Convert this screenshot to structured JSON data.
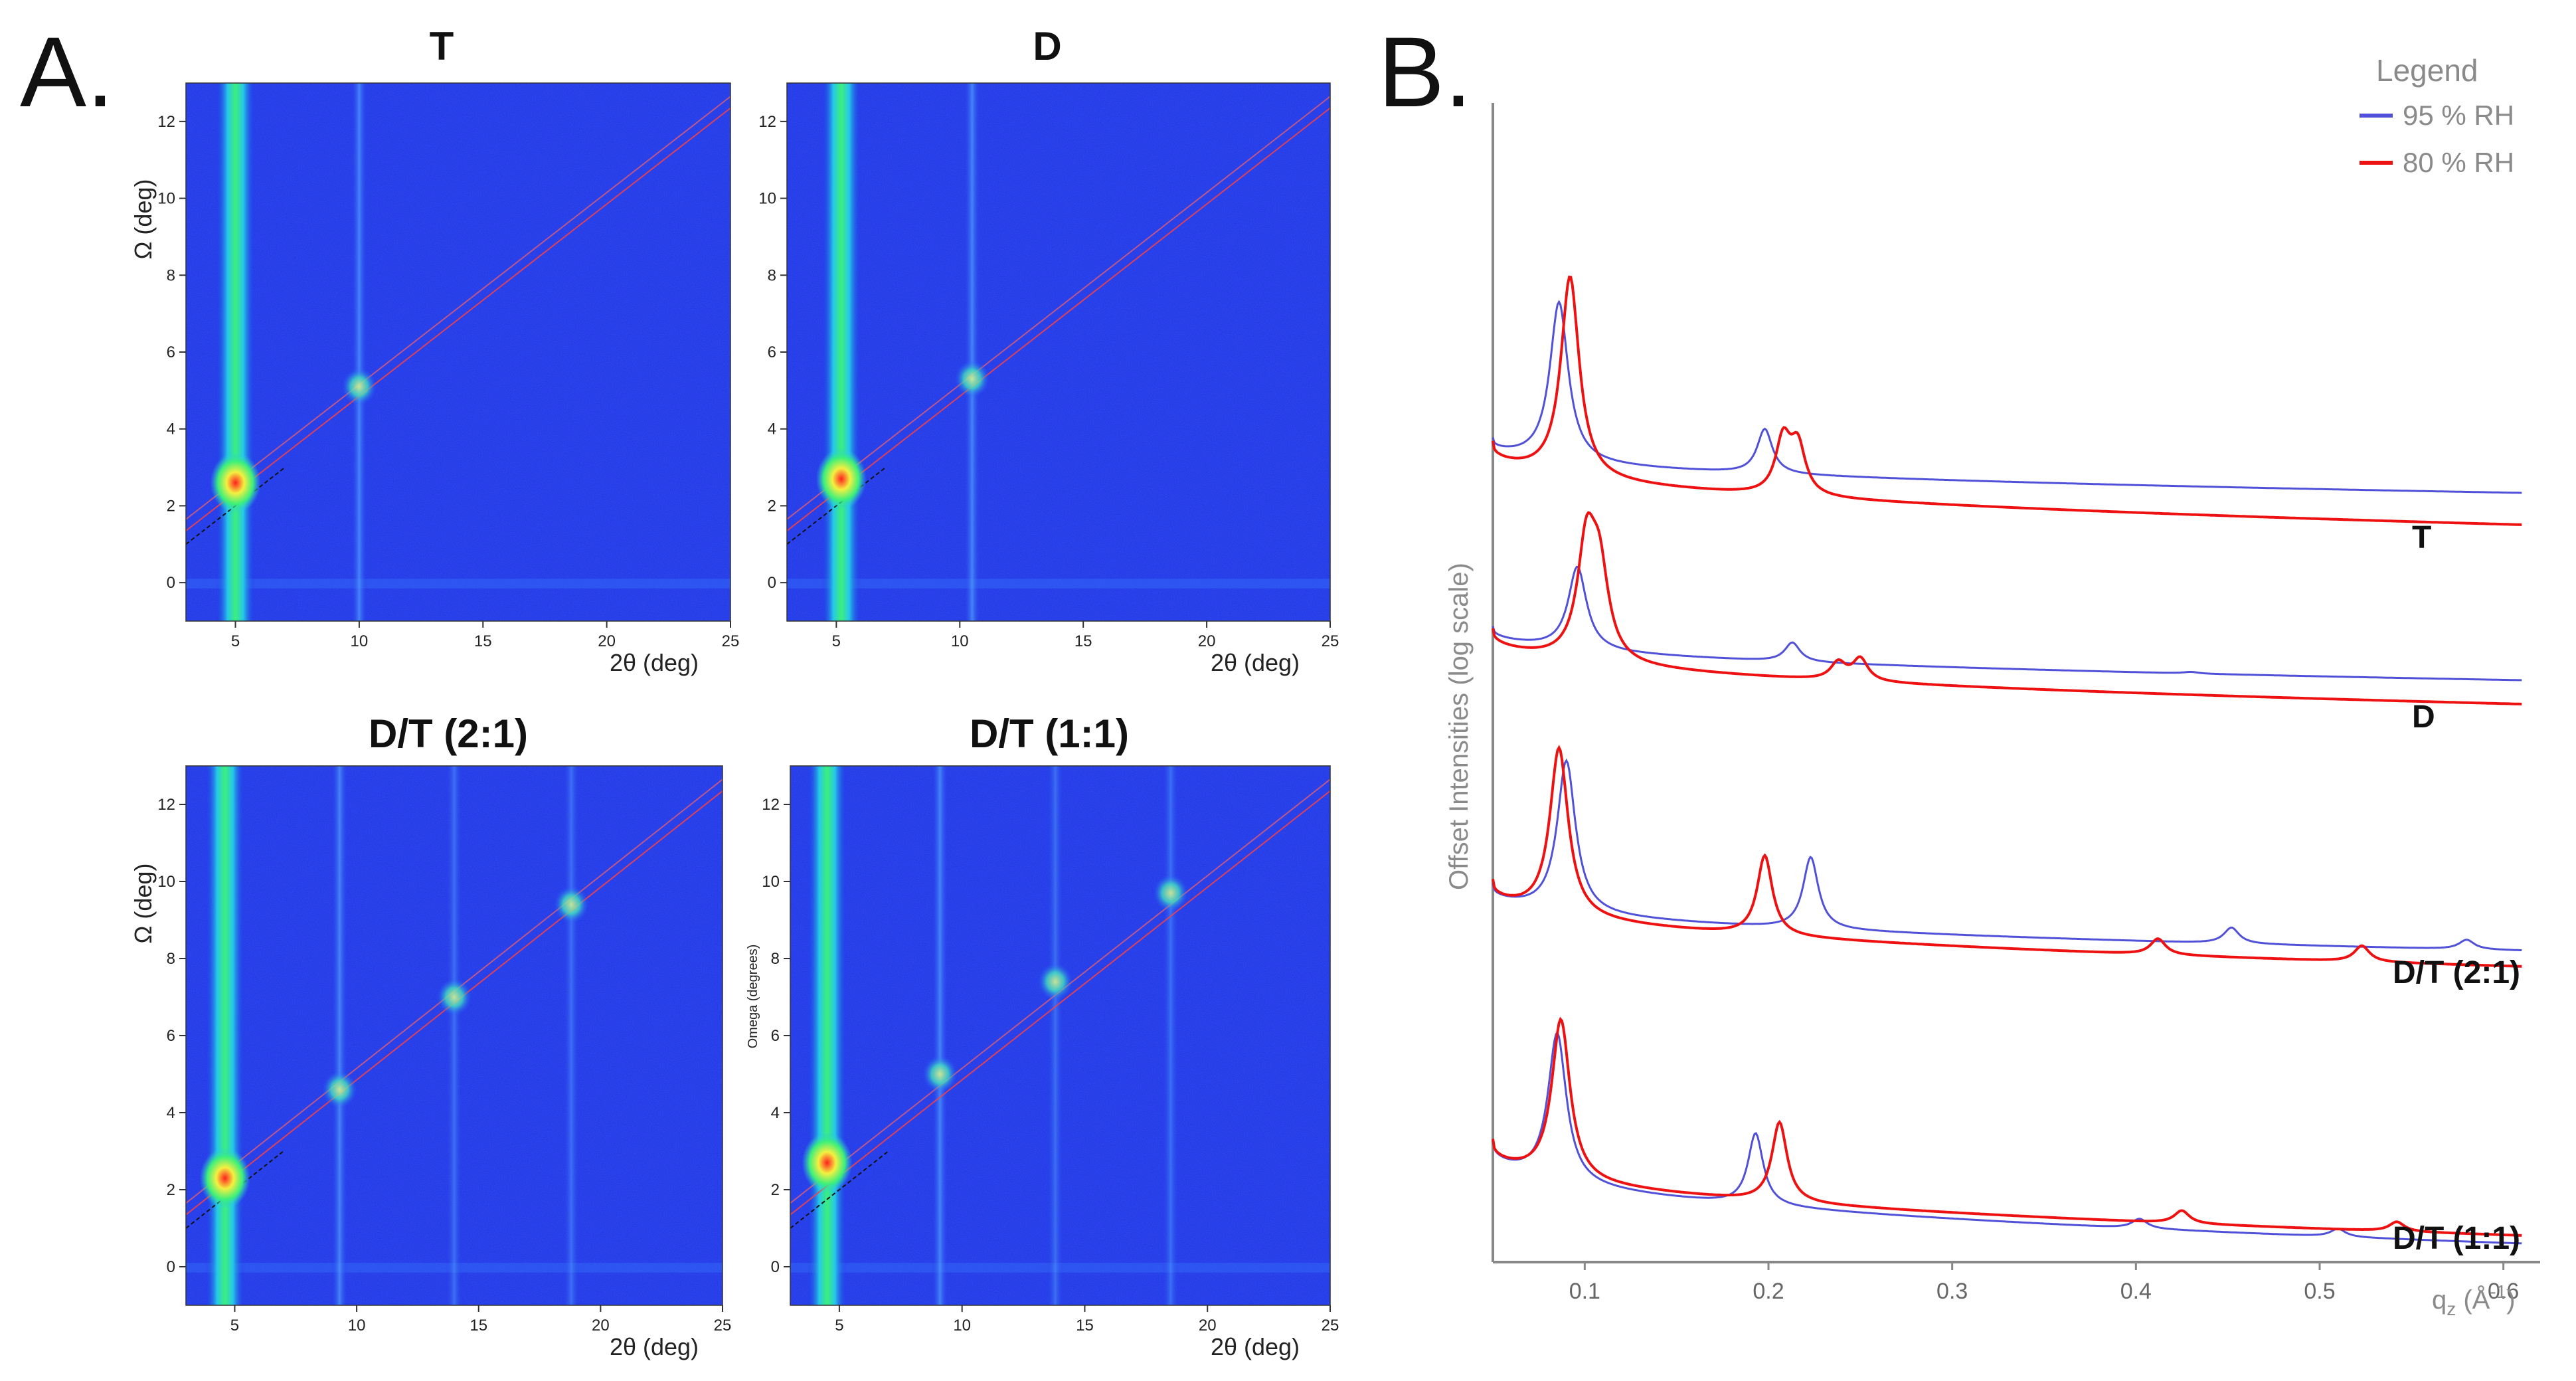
{
  "figure": {
    "panel_a_label": "A.",
    "panel_b_label": "B."
  },
  "colors": {
    "rh95": "#5050d8",
    "rh80": "#ee1111",
    "map_bg": "#1c2fe6",
    "axis_gray": "#888888"
  },
  "chart_data": [
    {
      "type": "heatmap",
      "panel": "A",
      "title": "T",
      "xlabel": "2θ (deg)",
      "ylabel": "Ω (deg)",
      "xlim": [
        3,
        25
      ],
      "ylim": [
        -1,
        13
      ],
      "xticks": [
        "5",
        "10",
        "15",
        "20",
        "25"
      ],
      "yticks": [
        "0",
        "2",
        "4",
        "6",
        "8",
        "10",
        "12"
      ],
      "bright_streaks_2theta": [
        5,
        10
      ],
      "specular_peaks": [
        {
          "two_theta": 5,
          "omega": 2.6
        },
        {
          "two_theta": 10,
          "omega": 5.1
        }
      ]
    },
    {
      "type": "heatmap",
      "panel": "A",
      "title": "D",
      "xlabel": "2θ (deg)",
      "ylabel": "",
      "xlim": [
        3,
        25
      ],
      "ylim": [
        -1,
        13
      ],
      "xticks": [
        "5",
        "10",
        "15",
        "20",
        "25"
      ],
      "yticks": [
        "0",
        "2",
        "4",
        "6",
        "8",
        "10",
        "12"
      ],
      "bright_streaks_2theta": [
        5.2,
        10.5
      ],
      "specular_peaks": [
        {
          "two_theta": 5.2,
          "omega": 2.7
        },
        {
          "two_theta": 10.5,
          "omega": 5.3
        }
      ]
    },
    {
      "type": "heatmap",
      "panel": "A",
      "title": "D/T (2:1)",
      "xlabel": "2θ (deg)",
      "ylabel": "Ω (deg)",
      "xlim": [
        3,
        25
      ],
      "ylim": [
        -1,
        13
      ],
      "xticks": [
        "5",
        "10",
        "15",
        "20",
        "25"
      ],
      "yticks": [
        "0",
        "2",
        "4",
        "6",
        "8",
        "10",
        "12"
      ],
      "bright_streaks_2theta": [
        4.6,
        9.3,
        14,
        18.8
      ],
      "specular_peaks": [
        {
          "two_theta": 4.6,
          "omega": 2.3
        },
        {
          "two_theta": 9.3,
          "omega": 4.6
        },
        {
          "two_theta": 14,
          "omega": 7
        },
        {
          "two_theta": 18.8,
          "omega": 9.4
        }
      ]
    },
    {
      "type": "heatmap",
      "panel": "A",
      "title": "D/T (1:1)",
      "xlabel": "2θ (deg)",
      "ylabel": "Omega (degrees)",
      "xlim": [
        3,
        25
      ],
      "ylim": [
        -1,
        13
      ],
      "xticks": [
        "5",
        "10",
        "15",
        "20",
        "25"
      ],
      "yticks": [
        "0",
        "2",
        "4",
        "6",
        "8",
        "10",
        "12"
      ],
      "bright_streaks_2theta": [
        4.5,
        9.1,
        13.8,
        18.5
      ],
      "specular_peaks": [
        {
          "two_theta": 4.5,
          "omega": 2.7
        },
        {
          "two_theta": 9.1,
          "omega": 5
        },
        {
          "two_theta": 13.8,
          "omega": 7.4
        },
        {
          "two_theta": 18.5,
          "omega": 9.7
        }
      ]
    },
    {
      "type": "line",
      "panel": "B",
      "xlabel": "q",
      "xlabel_sub": "z",
      "xlabel_unit": " (Å",
      "xlabel_sup": "-1",
      "xlabel_close": ")",
      "ylabel": "Offset Intensities (log scale)",
      "xlim": [
        0.05,
        0.62
      ],
      "xticks": [
        "0.1",
        "0.2",
        "0.3",
        "0.4",
        "0.5",
        "0.6"
      ],
      "legend": {
        "title": "Legend",
        "entries": [
          "95 % RH",
          "80 % RH"
        ],
        "location": "top-right"
      },
      "series": [
        {
          "sample": "T",
          "rh": "95 % RH",
          "baseline_start": 0.52,
          "baseline_end": 0.2,
          "peaks": [
            {
              "q": 0.086,
              "height": 1.0
            },
            {
              "q": 0.198,
              "height": 0.28
            }
          ]
        },
        {
          "sample": "T",
          "rh": "80 % RH",
          "baseline_start": 0.5,
          "baseline_end": 0.0,
          "peaks": [
            {
              "q": 0.092,
              "height": 1.26
            },
            {
              "q": 0.208,
              "height": 0.34
            },
            {
              "q": 0.216,
              "height": 0.3
            }
          ]
        },
        {
          "sample": "D",
          "rh": "95 % RH",
          "baseline_start": 0.48,
          "baseline_end": 0.15,
          "peaks": [
            {
              "q": 0.096,
              "height": 0.52
            },
            {
              "q": 0.213,
              "height": 0.12
            },
            {
              "q": 0.43,
              "height": 0.01
            }
          ]
        },
        {
          "sample": "D",
          "rh": "80 % RH",
          "baseline_start": 0.46,
          "baseline_end": 0.0,
          "peaks": [
            {
              "q": 0.101,
              "height": 0.7
            },
            {
              "q": 0.108,
              "height": 0.52
            },
            {
              "q": 0.238,
              "height": 0.11
            },
            {
              "q": 0.25,
              "height": 0.14
            }
          ]
        },
        {
          "sample": "D/T (2:1)",
          "rh": "95 % RH",
          "baseline_start": 0.5,
          "baseline_end": 0.1,
          "peaks": [
            {
              "q": 0.09,
              "height": 0.95
            },
            {
              "q": 0.223,
              "height": 0.45
            },
            {
              "q": 0.452,
              "height": 0.1
            },
            {
              "q": 0.58,
              "height": 0.06
            }
          ]
        },
        {
          "sample": "D/T (2:1)",
          "rh": "80 % RH",
          "baseline_start": 0.52,
          "baseline_end": 0.0,
          "peaks": [
            {
              "q": 0.086,
              "height": 1.05
            },
            {
              "q": 0.198,
              "height": 0.5
            },
            {
              "q": 0.412,
              "height": 0.1
            },
            {
              "q": 0.523,
              "height": 0.1
            }
          ]
        },
        {
          "sample": "D/T (1:1)",
          "rh": "95 % RH",
          "baseline_start": 0.58,
          "baseline_end": -0.05,
          "peaks": [
            {
              "q": 0.085,
              "height": 0.93
            },
            {
              "q": 0.193,
              "height": 0.45
            },
            {
              "q": 0.402,
              "height": 0.06
            },
            {
              "q": 0.51,
              "height": 0.05
            }
          ]
        },
        {
          "sample": "D/T (1:1)",
          "rh": "80 % RH",
          "baseline_start": 0.58,
          "baseline_end": 0.0,
          "peaks": [
            {
              "q": 0.087,
              "height": 1.0
            },
            {
              "q": 0.206,
              "height": 0.5
            },
            {
              "q": 0.425,
              "height": 0.08
            },
            {
              "q": 0.542,
              "height": 0.06
            }
          ]
        }
      ],
      "sample_labels": [
        "T",
        "D",
        "D/T (2:1)",
        "D/T (1:1)"
      ]
    }
  ]
}
